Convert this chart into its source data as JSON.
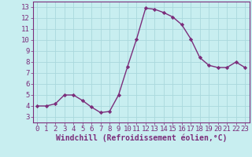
{
  "x": [
    0,
    1,
    2,
    3,
    4,
    5,
    6,
    7,
    8,
    9,
    10,
    11,
    12,
    13,
    14,
    15,
    16,
    17,
    18,
    19,
    20,
    21,
    22,
    23
  ],
  "y": [
    4.0,
    4.0,
    4.2,
    5.0,
    5.0,
    4.5,
    3.9,
    3.4,
    3.5,
    5.0,
    7.6,
    10.1,
    12.9,
    12.8,
    12.5,
    12.1,
    11.4,
    10.1,
    8.4,
    7.7,
    7.5,
    7.5,
    8.0,
    7.5
  ],
  "line_color": "#7b2d7b",
  "marker": "D",
  "marker_size": 2.2,
  "bg_color": "#c8eef0",
  "grid_color": "#aad8dc",
  "xlabel": "Windchill (Refroidissement éolien,°C)",
  "xlim": [
    -0.5,
    23.5
  ],
  "ylim": [
    2.5,
    13.5
  ],
  "yticks": [
    3,
    4,
    5,
    6,
    7,
    8,
    9,
    10,
    11,
    12,
    13
  ],
  "xticks": [
    0,
    1,
    2,
    3,
    4,
    5,
    6,
    7,
    8,
    9,
    10,
    11,
    12,
    13,
    14,
    15,
    16,
    17,
    18,
    19,
    20,
    21,
    22,
    23
  ],
  "tick_fontsize": 6.5,
  "xlabel_fontsize": 7.0,
  "label_color": "#7b2d7b",
  "spine_color": "#7b2d7b",
  "linewidth": 1.0
}
